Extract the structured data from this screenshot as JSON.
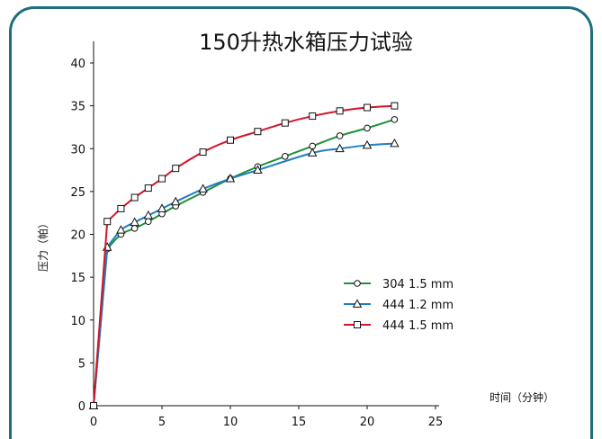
{
  "chart_data": {
    "type": "line",
    "title": "150升热水箱压力试验",
    "xlabel": "时间（分钟）",
    "ylabel": "压力（帕）",
    "xlim": [
      0,
      25
    ],
    "ylim": [
      0,
      40
    ],
    "x_ticks": [
      "0",
      "5",
      "10",
      "15",
      "20",
      "25"
    ],
    "y_ticks": [
      "0",
      "5",
      "10",
      "15",
      "20",
      "25",
      "30",
      "35",
      "40"
    ],
    "grid": false,
    "legend_position": "right-center",
    "series": [
      {
        "name": "304 1.5 mm",
        "color": "#1e9139",
        "marker": "circle",
        "points": [
          [
            0,
            0
          ],
          [
            1,
            18.3
          ],
          [
            2,
            20
          ],
          [
            3,
            20.7
          ],
          [
            4,
            21.5
          ],
          [
            5,
            22.4
          ],
          [
            6,
            23.3
          ],
          [
            8,
            24.9
          ],
          [
            10,
            26.5
          ],
          [
            12,
            27.9
          ],
          [
            14,
            29.1
          ],
          [
            16,
            30.3
          ],
          [
            18,
            31.5
          ],
          [
            20,
            32.4
          ],
          [
            22,
            33.4
          ]
        ]
      },
      {
        "name": "444 1.2 mm",
        "color": "#1f7ec2",
        "marker": "triangle",
        "points": [
          [
            0,
            0
          ],
          [
            1,
            18.5
          ],
          [
            2,
            20.5
          ],
          [
            3,
            21.4
          ],
          [
            4,
            22.2
          ],
          [
            5,
            23
          ],
          [
            6,
            23.8
          ],
          [
            8,
            25.3
          ],
          [
            10,
            26.5
          ],
          [
            12,
            27.5
          ],
          [
            16,
            29.5
          ],
          [
            18,
            30
          ],
          [
            20,
            30.4
          ],
          [
            22,
            30.6
          ]
        ]
      },
      {
        "name": "444 1.5 mm",
        "color": "#d4142a",
        "marker": "square",
        "points": [
          [
            0,
            0
          ],
          [
            1,
            21.5
          ],
          [
            2,
            23
          ],
          [
            3,
            24.3
          ],
          [
            4,
            25.4
          ],
          [
            5,
            26.5
          ],
          [
            6,
            27.7
          ],
          [
            8,
            29.6
          ],
          [
            10,
            31
          ],
          [
            12,
            32
          ],
          [
            14,
            33
          ],
          [
            16,
            33.8
          ],
          [
            18,
            34.4
          ],
          [
            20,
            34.8
          ],
          [
            22,
            35
          ]
        ]
      }
    ]
  }
}
